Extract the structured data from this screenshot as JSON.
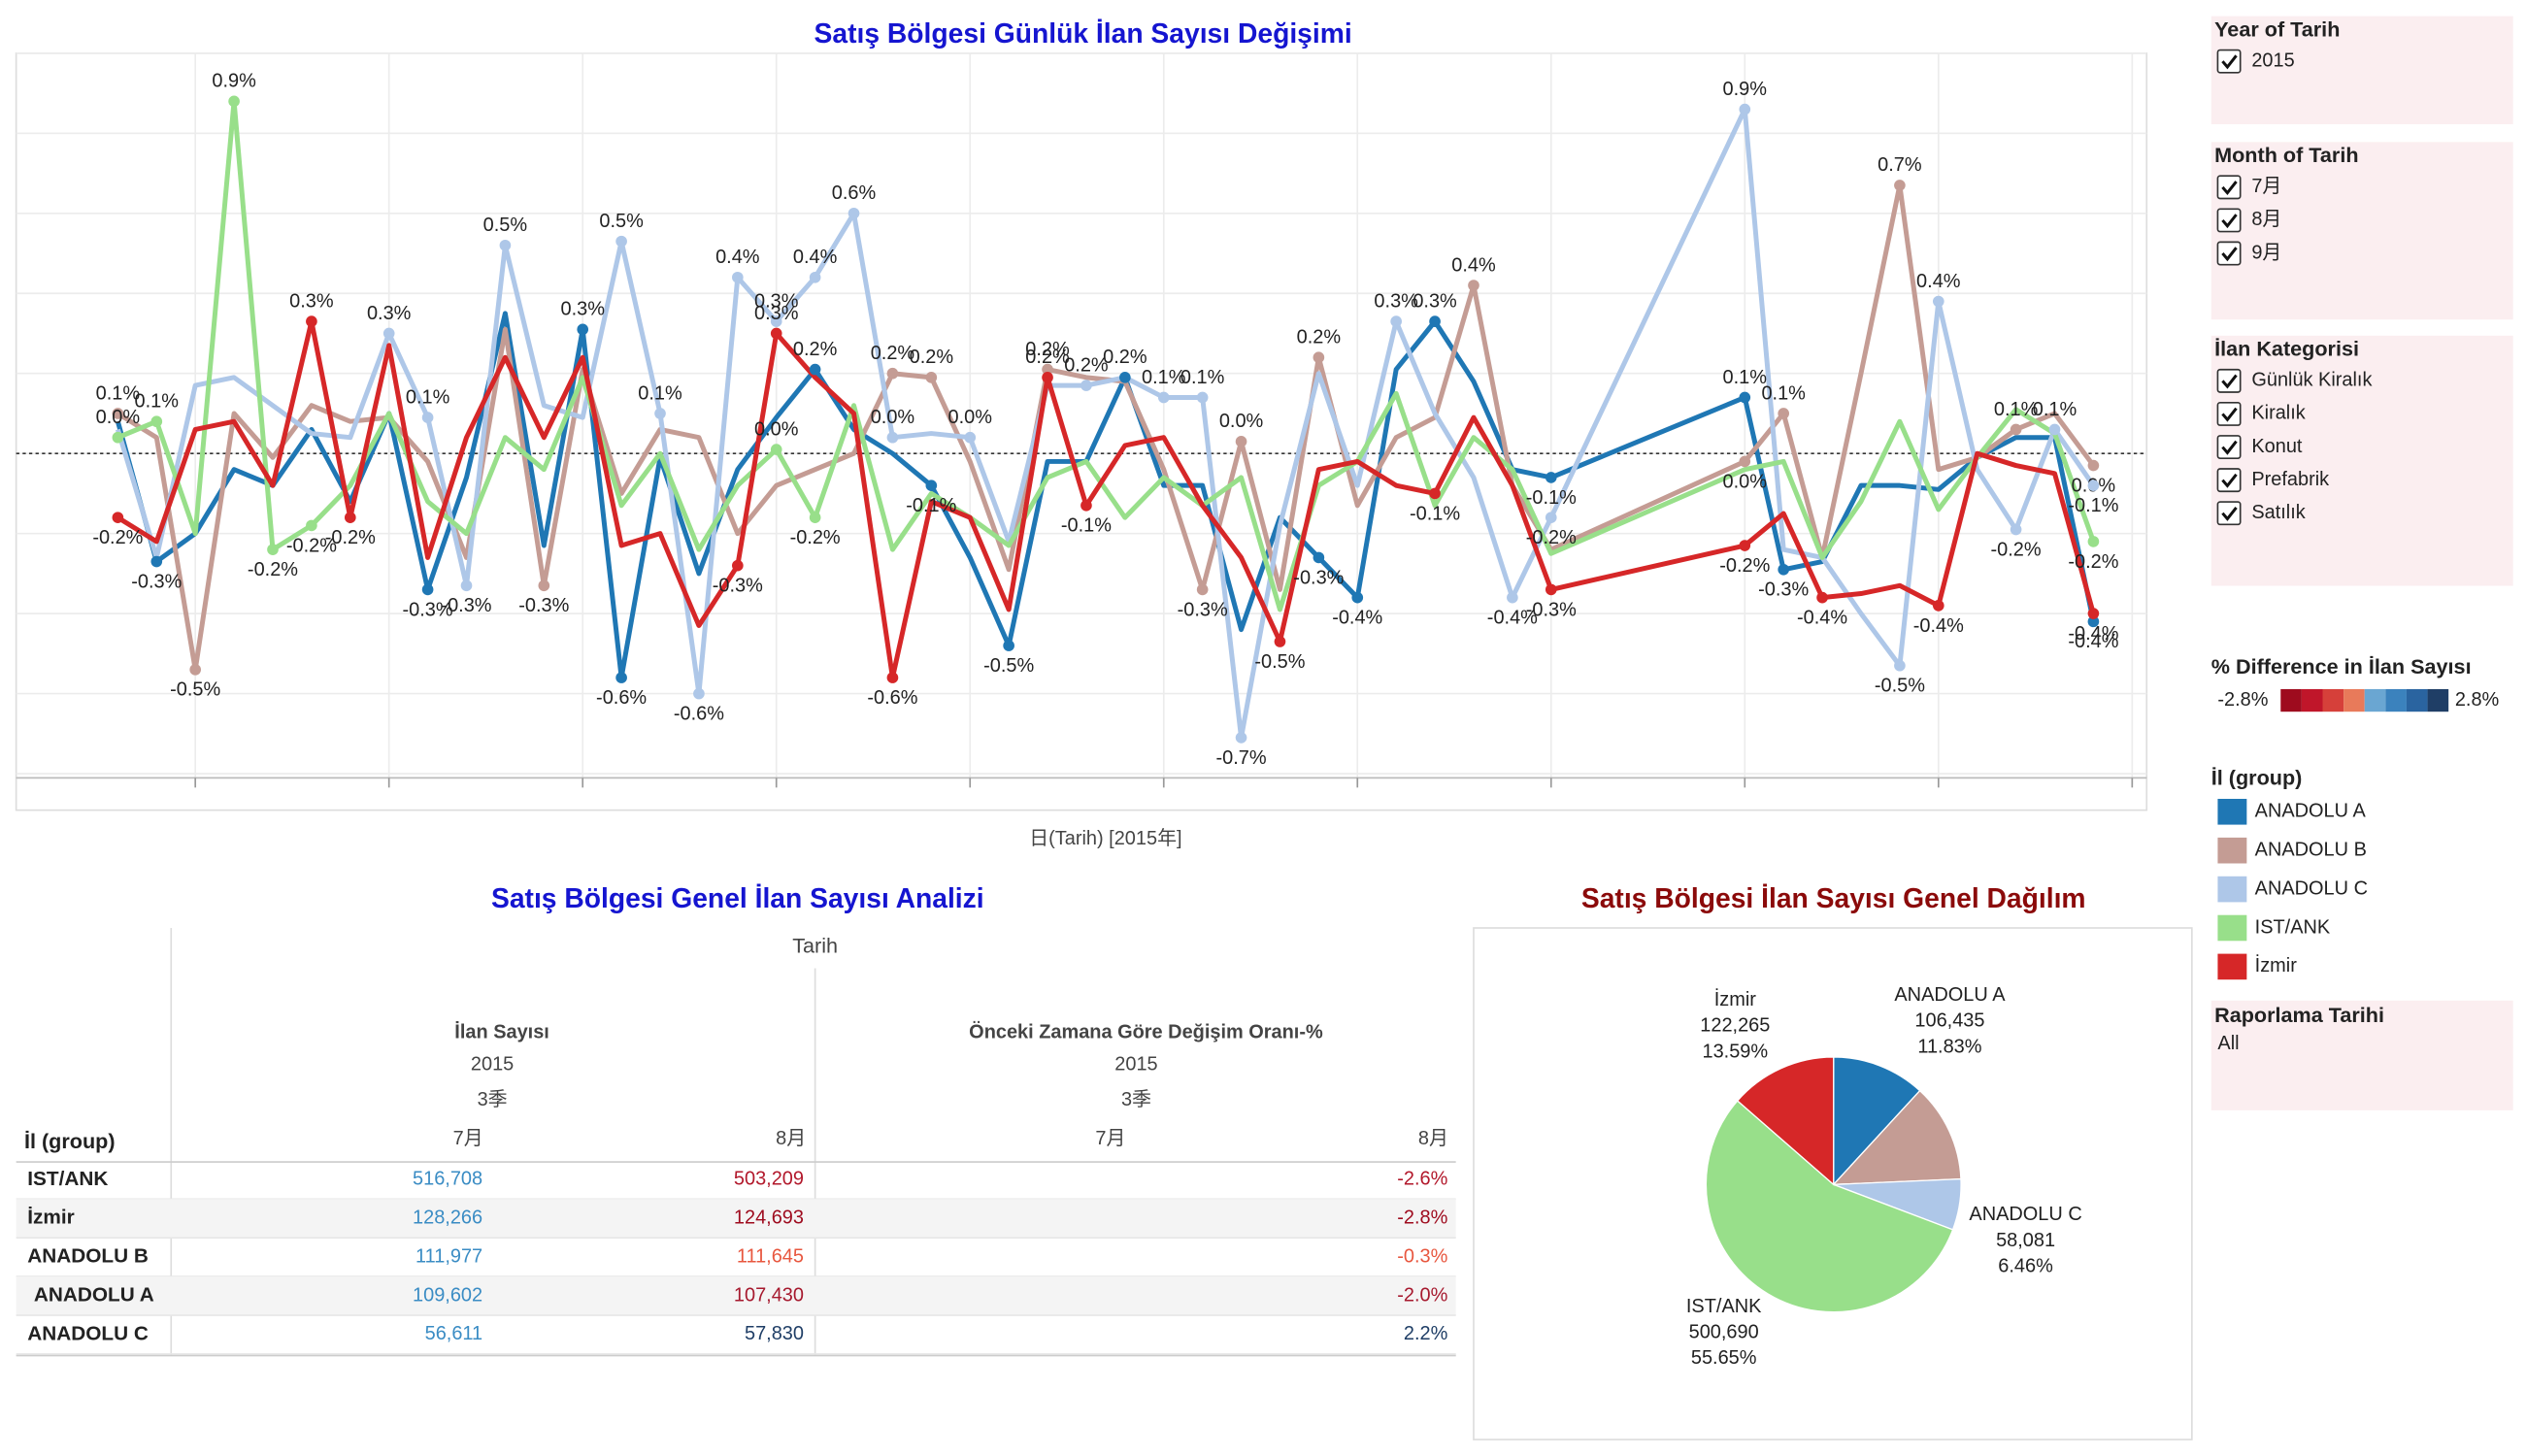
{
  "chart_data": [
    {
      "type": "line",
      "title": "Satış Bölgesi Günlük İlan Sayısı Değişimi",
      "x_label": "日(Tarih) [2015年]",
      "legend_title": "İl (group)",
      "categories": [
        null,
        null,
        null,
        null,
        null,
        null,
        null,
        null,
        null,
        null,
        null,
        null,
        null,
        null,
        null,
        null,
        null,
        null,
        null,
        null,
        null,
        null,
        null,
        null,
        null,
        null,
        null,
        null,
        null,
        null,
        null,
        null,
        null,
        null,
        null,
        null,
        null,
        null,
        null,
        null,
        null,
        null,
        null,
        null,
        null,
        null,
        null,
        null
      ],
      "ylim": [
        -0.8,
        1.0
      ],
      "yticks": [
        -0.8,
        -0.6,
        -0.4,
        -0.2,
        0,
        0.2,
        0.4,
        0.6,
        0.8,
        1.0
      ],
      "grid": true,
      "series": [
        {
          "name": "ANADOLU A",
          "color": "#1f77b4",
          "values": [
            0.08,
            -0.27,
            -0.2,
            -0.04,
            -0.08,
            0.06,
            -0.12,
            0.1,
            -0.34,
            -0.06,
            0.35,
            -0.23,
            0.31,
            -0.56,
            -0.01,
            -0.3,
            -0.04,
            0.09,
            0.21,
            0.06,
            0,
            -0.08,
            -0.26,
            -0.48,
            -0.02,
            -0.02,
            0.19,
            -0.08,
            -0.08,
            -0.44,
            -0.16,
            -0.26,
            -0.36,
            0.21,
            0.33,
            0.18,
            -0.04,
            -0.06,
            0.14,
            -0.29,
            -0.27,
            -0.08,
            -0.08,
            -0.09,
            -0.01,
            0.04,
            0.04,
            -0.42
          ],
          "value_labels": [
            null,
            "-0.3%",
            null,
            null,
            null,
            null,
            null,
            null,
            "-0.3%",
            null,
            null,
            null,
            "0.3%",
            "-0.6%",
            null,
            null,
            null,
            null,
            "0.2%",
            null,
            null,
            "-0.1%",
            null,
            "-0.5%",
            null,
            null,
            "0.2%",
            null,
            null,
            null,
            null,
            "-0.3%",
            "-0.4%",
            null,
            "0.3%",
            null,
            null,
            "-0.1%",
            "0.1%",
            "-0.3%",
            null,
            null,
            null,
            null,
            null,
            null,
            null,
            "-0.4%"
          ]
        },
        {
          "name": "ANADOLU B",
          "color": "#c49c94",
          "values": [
            0.1,
            0.04,
            -0.54,
            0.1,
            -0.01,
            0.12,
            0.08,
            0.09,
            -0.02,
            -0.26,
            0.31,
            -0.33,
            0.21,
            -0.1,
            0.06,
            0.04,
            -0.2,
            -0.08,
            -0.04,
            0,
            0.2,
            0.19,
            -0.02,
            -0.29,
            0.21,
            0.19,
            0.18,
            -0.04,
            -0.34,
            0.03,
            -0.34,
            0.24,
            -0.13,
            0.04,
            0.09,
            0.42,
            -0.08,
            -0.24,
            -0.02,
            0.1,
            -0.26,
            0.2,
            0.67,
            -0.04,
            -0.01,
            0.06,
            0.1,
            -0.03
          ],
          "value_labels": [
            "0.1%",
            null,
            "-0.5%",
            null,
            null,
            null,
            null,
            null,
            null,
            null,
            null,
            "-0.3%",
            null,
            null,
            null,
            null,
            null,
            null,
            null,
            null,
            "0.2%",
            "0.2%",
            null,
            null,
            "0.2%",
            null,
            null,
            null,
            "-0.3%",
            "0.0%",
            null,
            "0.2%",
            null,
            null,
            null,
            "0.4%",
            null,
            null,
            "0.0%",
            "0.1%",
            null,
            null,
            "0.7%",
            null,
            null,
            "0.1%",
            null,
            "0.0%"
          ]
        },
        {
          "name": "ANADOLU C",
          "color": "#aec7e8",
          "values": [
            0.06,
            -0.26,
            0.17,
            0.19,
            0.12,
            0.05,
            0.04,
            0.3,
            0.09,
            -0.33,
            0.52,
            0.12,
            0.09,
            0.53,
            0.1,
            -0.6,
            0.44,
            0.33,
            0.44,
            0.6,
            0.04,
            0.05,
            0.04,
            -0.22,
            0.17,
            0.17,
            0.19,
            0.14,
            0.14,
            -0.71,
            -0.18,
            0.2,
            -0.08,
            0.33,
            0.1,
            -0.06,
            -0.36,
            -0.16,
            0.86,
            -0.24,
            -0.26,
            -0.4,
            -0.53,
            0.38,
            -0.04,
            -0.19,
            0.06,
            -0.08
          ],
          "value_labels": [
            null,
            null,
            null,
            null,
            null,
            null,
            null,
            "0.3%",
            "0.1%",
            "-0.3%",
            "0.5%",
            null,
            null,
            "0.5%",
            "0.1%",
            "-0.6%",
            "0.4%",
            "0.3%",
            "0.4%",
            "0.6%",
            "0.0%",
            null,
            "0.0%",
            null,
            null,
            "0.2%",
            null,
            "0.1%",
            "0.1%",
            "-0.7%",
            null,
            null,
            null,
            "0.3%",
            null,
            null,
            "-0.4%",
            "-0.2%",
            "0.9%",
            null,
            null,
            null,
            "-0.5%",
            "0.4%",
            null,
            "-0.2%",
            "0.1%",
            "-0.1%"
          ]
        },
        {
          "name": "IST/ANK",
          "color": "#98df8a",
          "values": [
            0.04,
            0.08,
            -0.2,
            0.88,
            -0.24,
            -0.18,
            -0.08,
            0.1,
            -0.12,
            -0.2,
            0.04,
            -0.04,
            0.19,
            -0.13,
            0,
            -0.24,
            -0.08,
            0.01,
            -0.16,
            0.12,
            -0.24,
            -0.1,
            -0.16,
            -0.23,
            -0.06,
            -0.02,
            -0.16,
            -0.06,
            -0.13,
            -0.06,
            -0.39,
            -0.08,
            -0.02,
            0.15,
            -0.13,
            0.04,
            -0.04,
            -0.25,
            -0.04,
            -0.02,
            -0.26,
            -0.12,
            0.08,
            -0.14,
            -0.01,
            0.11,
            0.05,
            -0.22
          ],
          "value_labels": [
            "0.0%",
            "0.1%",
            null,
            "0.9%",
            "-0.2%",
            "-0.2%",
            null,
            null,
            null,
            null,
            null,
            null,
            null,
            null,
            null,
            null,
            null,
            "0.0%",
            "-0.2%",
            null,
            null,
            null,
            null,
            null,
            null,
            null,
            null,
            null,
            null,
            null,
            null,
            null,
            null,
            null,
            null,
            null,
            null,
            null,
            null,
            null,
            null,
            null,
            null,
            null,
            null,
            null,
            null,
            "-0.2%"
          ]
        },
        {
          "name": "İzmir",
          "color": "#d62728",
          "values": [
            -0.16,
            -0.22,
            0.06,
            0.08,
            -0.08,
            0.33,
            -0.16,
            0.27,
            -0.26,
            0.04,
            0.24,
            0.04,
            0.24,
            -0.23,
            -0.2,
            -0.43,
            -0.28,
            0.3,
            0.19,
            0.1,
            -0.56,
            -0.12,
            -0.16,
            -0.39,
            0.19,
            -0.13,
            0.02,
            0.04,
            -0.13,
            -0.26,
            -0.47,
            -0.04,
            -0.02,
            -0.08,
            -0.1,
            0.09,
            -0.08,
            -0.34,
            -0.23,
            -0.15,
            -0.36,
            -0.35,
            -0.33,
            -0.38,
            0,
            -0.03,
            -0.05,
            -0.4
          ],
          "value_labels": [
            "-0.2%",
            null,
            null,
            null,
            null,
            "0.3%",
            "-0.2%",
            null,
            null,
            null,
            null,
            null,
            null,
            null,
            null,
            null,
            "-0.3%",
            "0.3%",
            null,
            null,
            "-0.6%",
            null,
            null,
            null,
            "0.2%",
            "-0.1%",
            null,
            null,
            null,
            null,
            "-0.5%",
            null,
            null,
            null,
            "-0.1%",
            null,
            null,
            "-0.3%",
            "-0.2%",
            null,
            "-0.4%",
            null,
            null,
            "-0.4%",
            null,
            null,
            null,
            "-0.4%"
          ]
        }
      ]
    },
    {
      "type": "pie",
      "title": "Satış Bölgesi İlan Sayısı Genel Dağılım",
      "categories": [
        "ANADOLU A",
        null,
        "ANADOLU C",
        "IST/ANK",
        "İzmir"
      ],
      "values": [
        106435,
        112241,
        58081,
        500690,
        122265
      ],
      "value_labels": [
        "106,435",
        null,
        "58,081",
        "500,690",
        "122,265"
      ],
      "percent_labels": [
        "11.83%",
        null,
        "6.46%",
        "55.65%",
        "13.59%"
      ],
      "colors": [
        "#1f77b4",
        "#c49c94",
        "#aec7e8",
        "#98df8a",
        "#d62728"
      ]
    }
  ],
  "table": {
    "title": "Satış Bölgesi Genel İlan Sayısı Analizi",
    "column_header": "Tarih",
    "row_header": "İl (group)",
    "groups": [
      {
        "title": "İlan Sayısı",
        "year": "2015",
        "quarter": "3季",
        "months": [
          "7月",
          "8月"
        ]
      },
      {
        "title": "Önceki Zamana Göre Değişim Oranı-%",
        "year": "2015",
        "quarter": "3季",
        "months": [
          "7月",
          "8月"
        ]
      }
    ],
    "rows": [
      {
        "name": "IST/ANK",
        "values": [
          "516,708",
          "503,209"
        ],
        "change": "-2.6%",
        "color": "#b2182b"
      },
      {
        "name": "İzmir",
        "values": [
          "128,266",
          "124,693"
        ],
        "change": "-2.8%",
        "color": "#9e0b1e"
      },
      {
        "name": "ANADOLU B",
        "values": [
          "111,977",
          "111,645"
        ],
        "change": "-0.3%",
        "color": "#e8573f"
      },
      {
        "name": "ANADOLU A",
        "values": [
          "109,602",
          "107,430"
        ],
        "change": "-2.0%",
        "color": "#a6192e"
      },
      {
        "name": "ANADOLU C",
        "values": [
          "56,611",
          "57,830"
        ],
        "change": "2.2%",
        "color": "#1f3e66"
      }
    ]
  },
  "filters": {
    "year": {
      "title": "Year of Tarih",
      "items": [
        "2015"
      ]
    },
    "month": {
      "title": "Month of Tarih",
      "items": [
        "7月",
        "8月",
        "9月"
      ]
    },
    "category": {
      "title": "İlan Kategorisi",
      "items": [
        "Günlük Kiralık",
        "Kiralık",
        "Konut",
        "Prefabrik",
        "Satılık"
      ]
    },
    "color_legend": {
      "title": "% Difference in İlan Sayısı",
      "min_label": "-2.8%",
      "max_label": "2.8%"
    },
    "report_date": {
      "title": "Raporlama Tarihi",
      "value": "All"
    }
  }
}
